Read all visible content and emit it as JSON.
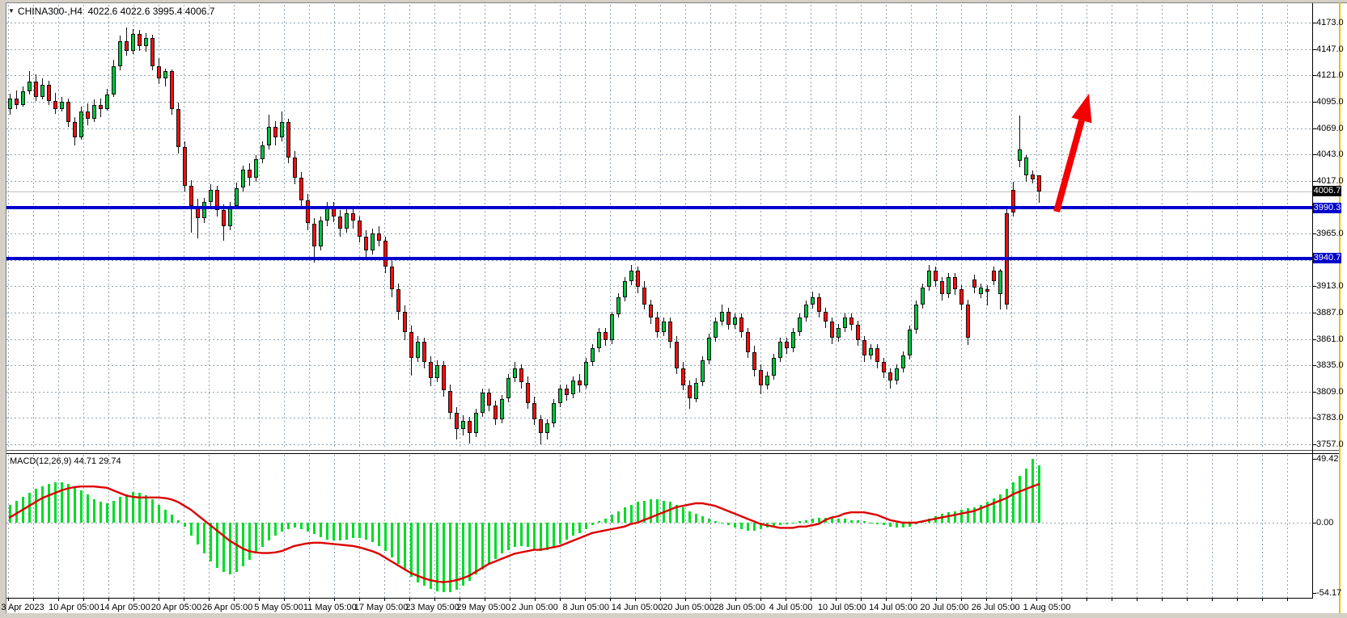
{
  "window": {
    "dropdown_icon": "▼",
    "symbol_timeframe": "CHINA300-,H4",
    "ohlc_text": "4022.6 4022.6 3995.4 4006.7"
  },
  "price_axis": {
    "labels": [
      {
        "value": 4173,
        "text": "4173.0"
      },
      {
        "value": 4147,
        "text": "4147.0"
      },
      {
        "value": 4121,
        "text": "4121.0"
      },
      {
        "value": 4095,
        "text": "4095.0"
      },
      {
        "value": 4069,
        "text": "4069.0"
      },
      {
        "value": 4043,
        "text": "4043.0"
      },
      {
        "value": 4017,
        "text": "4017.0"
      },
      {
        "value": 3965,
        "text": "3965.0"
      },
      {
        "value": 3913,
        "text": "3913.0"
      },
      {
        "value": 3887,
        "text": "3887.0"
      },
      {
        "value": 3861,
        "text": "3861.0"
      },
      {
        "value": 3835,
        "text": "3835.0"
      },
      {
        "value": 3809,
        "text": "3809.0"
      },
      {
        "value": 3783,
        "text": "3783.0"
      },
      {
        "value": 3757,
        "text": "3757.0"
      }
    ],
    "gridline_values": [
      4173,
      4147,
      4121,
      4095,
      4069,
      4043,
      4017,
      3991,
      3965,
      3939,
      3913,
      3887,
      3861,
      3835,
      3809,
      3783,
      3757
    ],
    "current_price_badge": {
      "value": 4006.7,
      "text": "4006.7",
      "bg": "#000000"
    },
    "line_badges": [
      {
        "value": 3990.3,
        "text": "3990.3",
        "bg": "#0000CD"
      },
      {
        "value": 3940.7,
        "text": "3940.7",
        "bg": "#0000CD"
      }
    ]
  },
  "time_axis": {
    "labels": [
      "3 Apr 2023",
      "10 Apr 05:00",
      "14 Apr 05:00",
      "20 Apr 05:00",
      "26 Apr 05:00",
      "5 May 05:00",
      "11 May 05:00",
      "17 May 05:00",
      "23 May 05:00",
      "29 May 05:00",
      "2 Jun 05:00",
      "8 Jun 05:00",
      "14 Jun 05:00",
      "20 Jun 05:00",
      "28 Jun 05:00",
      "4 Jul 05:00",
      "10 Jul 05:00",
      "14 Jul 05:00",
      "20 Jul 05:00",
      "26 Jul 05:00",
      "1 Aug 05:00"
    ]
  },
  "macd_panel": {
    "label": "MACD(12,26,9)",
    "macd_value": "44.71",
    "signal_value": "29.74",
    "axis_labels": [
      {
        "value": 49.42,
        "text": "49.42"
      },
      {
        "value": 0,
        "text": "0.00"
      },
      {
        "value": -54.17,
        "text": "-54.17"
      }
    ]
  },
  "colors": {
    "bull_candle": "#00C33C",
    "bear_candle": "#FF0C0C",
    "wick": "#111111",
    "grid": "#8FA3B2",
    "hline_blue": "#0000CD",
    "current_price_line": "#C0C0C0",
    "macd_histogram": "#00DC28",
    "macd_signal": "#DC0000",
    "arrow": "#F50000",
    "axis_edge_yellow": "#EFC100"
  },
  "chart_data": {
    "type": "candlestick",
    "symbol": "CHINA300",
    "timeframe": "H4",
    "title": "CHINA300-,H4 4022.6 4022.6 3995.4 4006.7",
    "ohlc_current": {
      "open": 4022.6,
      "high": 4022.6,
      "low": 3995.4,
      "close": 4006.7
    },
    "price_axis_range": [
      3757,
      4173
    ],
    "price_tick_step": 26,
    "x_labels": [
      "3 Apr 2023",
      "10 Apr 05:00",
      "14 Apr 05:00",
      "20 Apr 05:00",
      "26 Apr 05:00",
      "5 May 05:00",
      "11 May 05:00",
      "17 May 05:00",
      "23 May 05:00",
      "29 May 05:00",
      "2 Jun 05:00",
      "8 Jun 05:00",
      "14 Jun 05:00",
      "20 Jun 05:00",
      "28 Jun 05:00",
      "4 Jul 05:00",
      "10 Jul 05:00",
      "14 Jul 05:00",
      "20 Jul 05:00",
      "26 Jul 05:00",
      "1 Aug 05:00"
    ],
    "horizontal_lines": [
      {
        "value": 3990.3
      },
      {
        "value": 3940.7
      }
    ],
    "current_price": 4006.7,
    "annotations": [
      {
        "type": "up-arrow",
        "color": "#F50000",
        "meaning": "bullish breakout projection"
      }
    ],
    "candles": [
      [
        4088,
        4103,
        4082,
        4098
      ],
      [
        4098,
        4106,
        4088,
        4092
      ],
      [
        4092,
        4110,
        4090,
        4105
      ],
      [
        4105,
        4125,
        4102,
        4115
      ],
      [
        4115,
        4122,
        4096,
        4100
      ],
      [
        4100,
        4118,
        4097,
        4112
      ],
      [
        4112,
        4116,
        4092,
        4096
      ],
      [
        4096,
        4104,
        4083,
        4088
      ],
      [
        4088,
        4100,
        4085,
        4095
      ],
      [
        4095,
        4098,
        4070,
        4075
      ],
      [
        4075,
        4080,
        4052,
        4060
      ],
      [
        4060,
        4090,
        4057,
        4085
      ],
      [
        4085,
        4093,
        4072,
        4078
      ],
      [
        4078,
        4097,
        4075,
        4092
      ],
      [
        4092,
        4098,
        4080,
        4088
      ],
      [
        4088,
        4108,
        4086,
        4102
      ],
      [
        4102,
        4136,
        4100,
        4130
      ],
      [
        4130,
        4160,
        4126,
        4155
      ],
      [
        4155,
        4168,
        4140,
        4145
      ],
      [
        4145,
        4167,
        4142,
        4162
      ],
      [
        4162,
        4166,
        4145,
        4150
      ],
      [
        4150,
        4163,
        4144,
        4158
      ],
      [
        4158,
        4161,
        4126,
        4130
      ],
      [
        4130,
        4138,
        4112,
        4118
      ],
      [
        4118,
        4128,
        4110,
        4125
      ],
      [
        4125,
        4127,
        4082,
        4088
      ],
      [
        4088,
        4094,
        4044,
        4050
      ],
      [
        4050,
        4056,
        4006,
        4012
      ],
      [
        4012,
        4018,
        3966,
        3992
      ],
      [
        3992,
        3999,
        3960,
        3980
      ],
      [
        3980,
        4000,
        3975,
        3996
      ],
      [
        3996,
        4014,
        3990,
        4008
      ],
      [
        4008,
        4012,
        3982,
        3988
      ],
      [
        3988,
        3994,
        3958,
        3972
      ],
      [
        3972,
        3996,
        3968,
        3992
      ],
      [
        3992,
        4015,
        3989,
        4010
      ],
      [
        4010,
        4032,
        4006,
        4028
      ],
      [
        4028,
        4034,
        4012,
        4020
      ],
      [
        4020,
        4042,
        4016,
        4038
      ],
      [
        4038,
        4056,
        4034,
        4052
      ],
      [
        4052,
        4082,
        4048,
        4070
      ],
      [
        4070,
        4076,
        4052,
        4060
      ],
      [
        4060,
        4085,
        4056,
        4075
      ],
      [
        4075,
        4078,
        4034,
        4040
      ],
      [
        4040,
        4046,
        4014,
        4020
      ],
      [
        4020,
        4026,
        3992,
        3998
      ],
      [
        3998,
        4004,
        3968,
        3975
      ],
      [
        3975,
        3980,
        3936,
        3952
      ],
      [
        3952,
        3982,
        3948,
        3978
      ],
      [
        3978,
        3996,
        3972,
        3992
      ],
      [
        3992,
        3996,
        3976,
        3982
      ],
      [
        3982,
        3988,
        3962,
        3970
      ],
      [
        3970,
        3990,
        3966,
        3985
      ],
      [
        3985,
        3992,
        3970,
        3978
      ],
      [
        3978,
        3982,
        3956,
        3962
      ],
      [
        3962,
        3968,
        3940,
        3948
      ],
      [
        3948,
        3970,
        3944,
        3965
      ],
      [
        3965,
        3972,
        3952,
        3958
      ],
      [
        3958,
        3962,
        3926,
        3932
      ],
      [
        3932,
        3938,
        3902,
        3910
      ],
      [
        3910,
        3916,
        3880,
        3888
      ],
      [
        3888,
        3894,
        3860,
        3868
      ],
      [
        3868,
        3874,
        3825,
        3842
      ],
      [
        3842,
        3864,
        3838,
        3858
      ],
      [
        3858,
        3862,
        3832,
        3838
      ],
      [
        3838,
        3844,
        3814,
        3822
      ],
      [
        3822,
        3840,
        3818,
        3835
      ],
      [
        3835,
        3839,
        3804,
        3810
      ],
      [
        3810,
        3816,
        3782,
        3788
      ],
      [
        3788,
        3794,
        3762,
        3772
      ],
      [
        3772,
        3786,
        3766,
        3780
      ],
      [
        3780,
        3784,
        3758,
        3768
      ],
      [
        3768,
        3792,
        3764,
        3788
      ],
      [
        3788,
        3812,
        3784,
        3808
      ],
      [
        3808,
        3812,
        3790,
        3795
      ],
      [
        3795,
        3800,
        3776,
        3782
      ],
      [
        3782,
        3806,
        3778,
        3802
      ],
      [
        3802,
        3826,
        3798,
        3822
      ],
      [
        3822,
        3838,
        3818,
        3832
      ],
      [
        3832,
        3836,
        3812,
        3818
      ],
      [
        3818,
        3824,
        3792,
        3798
      ],
      [
        3798,
        3804,
        3776,
        3782
      ],
      [
        3782,
        3786,
        3757,
        3768
      ],
      [
        3768,
        3782,
        3762,
        3778
      ],
      [
        3778,
        3802,
        3774,
        3798
      ],
      [
        3798,
        3816,
        3794,
        3812
      ],
      [
        3812,
        3816,
        3800,
        3806
      ],
      [
        3806,
        3824,
        3802,
        3820
      ],
      [
        3820,
        3826,
        3808,
        3815
      ],
      [
        3815,
        3842,
        3812,
        3838
      ],
      [
        3838,
        3856,
        3834,
        3852
      ],
      [
        3852,
        3872,
        3848,
        3868
      ],
      [
        3868,
        3872,
        3854,
        3860
      ],
      [
        3860,
        3888,
        3856,
        3885
      ],
      [
        3885,
        3906,
        3882,
        3902
      ],
      [
        3902,
        3922,
        3898,
        3918
      ],
      [
        3918,
        3934,
        3914,
        3928
      ],
      [
        3928,
        3932,
        3906,
        3912
      ],
      [
        3912,
        3918,
        3890,
        3895
      ],
      [
        3895,
        3900,
        3876,
        3882
      ],
      [
        3882,
        3888,
        3862,
        3868
      ],
      [
        3868,
        3882,
        3864,
        3878
      ],
      [
        3878,
        3882,
        3852,
        3858
      ],
      [
        3858,
        3864,
        3826,
        3832
      ],
      [
        3832,
        3838,
        3810,
        3815
      ],
      [
        3815,
        3820,
        3792,
        3802
      ],
      [
        3802,
        3822,
        3798,
        3818
      ],
      [
        3818,
        3844,
        3814,
        3840
      ],
      [
        3840,
        3866,
        3836,
        3862
      ],
      [
        3862,
        3882,
        3858,
        3878
      ],
      [
        3878,
        3895,
        3874,
        3888
      ],
      [
        3888,
        3892,
        3870,
        3875
      ],
      [
        3875,
        3886,
        3871,
        3882
      ],
      [
        3882,
        3886,
        3862,
        3868
      ],
      [
        3868,
        3872,
        3842,
        3848
      ],
      [
        3848,
        3854,
        3824,
        3830
      ],
      [
        3830,
        3836,
        3806,
        3815
      ],
      [
        3815,
        3829,
        3811,
        3825
      ],
      [
        3825,
        3846,
        3821,
        3842
      ],
      [
        3842,
        3862,
        3838,
        3858
      ],
      [
        3858,
        3862,
        3846,
        3852
      ],
      [
        3852,
        3872,
        3848,
        3868
      ],
      [
        3868,
        3886,
        3864,
        3882
      ],
      [
        3882,
        3899,
        3878,
        3895
      ],
      [
        3895,
        3908,
        3891,
        3902
      ],
      [
        3902,
        3906,
        3882,
        3888
      ],
      [
        3888,
        3892,
        3872,
        3878
      ],
      [
        3878,
        3882,
        3856,
        3862
      ],
      [
        3862,
        3876,
        3858,
        3872
      ],
      [
        3872,
        3886,
        3868,
        3882
      ],
      [
        3882,
        3886,
        3869,
        3875
      ],
      [
        3875,
        3879,
        3854,
        3860
      ],
      [
        3860,
        3864,
        3838,
        3845
      ],
      [
        3845,
        3856,
        3841,
        3852
      ],
      [
        3852,
        3856,
        3832,
        3838
      ],
      [
        3838,
        3842,
        3822,
        3828
      ],
      [
        3828,
        3832,
        3812,
        3820
      ],
      [
        3820,
        3836,
        3816,
        3832
      ],
      [
        3832,
        3849,
        3828,
        3845
      ],
      [
        3845,
        3874,
        3841,
        3870
      ],
      [
        3870,
        3899,
        3866,
        3895
      ],
      [
        3895,
        3916,
        3891,
        3912
      ],
      [
        3912,
        3934,
        3908,
        3928
      ],
      [
        3928,
        3932,
        3912,
        3918
      ],
      [
        3918,
        3922,
        3899,
        3905
      ],
      [
        3905,
        3926,
        3901,
        3922
      ],
      [
        3922,
        3926,
        3904,
        3910
      ],
      [
        3910,
        3914,
        3889,
        3895
      ],
      [
        3895,
        3900,
        3855,
        3862
      ],
      [
        3920,
        3924,
        3906,
        3912
      ],
      [
        3905,
        3916,
        3901,
        3912
      ],
      [
        3910,
        3914,
        3894,
        3908
      ],
      [
        3928,
        3932,
        3914,
        3918
      ],
      [
        3905,
        3930,
        3890,
        3928
      ],
      [
        3985,
        3990,
        3890,
        3895
      ],
      [
        4008,
        4016,
        3982,
        3986
      ],
      [
        4037,
        4081,
        4030,
        4048
      ],
      [
        4022,
        4042,
        4016,
        4040
      ],
      [
        4023,
        4027,
        4014,
        4018
      ],
      [
        4022.6,
        4022.6,
        3995.4,
        4006.7
      ]
    ],
    "indicator": {
      "type": "MACD",
      "params": "12,26,9",
      "current_macd": 44.71,
      "current_signal": 29.74,
      "axis_max": 49.42,
      "axis_min": -54.17,
      "histogram": [
        14,
        17,
        20,
        23,
        26,
        28,
        30,
        31,
        31,
        30,
        28,
        25,
        22,
        18,
        16,
        15,
        17,
        20,
        22,
        24,
        23,
        21,
        18,
        14,
        10,
        6,
        2,
        -3,
        -10,
        -17,
        -24,
        -30,
        -35,
        -38,
        -40,
        -38,
        -34,
        -29,
        -24,
        -19,
        -14,
        -10,
        -7,
        -5,
        -4,
        -5,
        -7,
        -9,
        -11,
        -13,
        -14,
        -14,
        -13,
        -12,
        -12,
        -13,
        -15,
        -18,
        -22,
        -27,
        -32,
        -37,
        -42,
        -46,
        -49,
        -51.5,
        -53,
        -54,
        -53.5,
        -52,
        -49,
        -45,
        -40,
        -36,
        -32,
        -28,
        -24,
        -21,
        -19,
        -18,
        -19,
        -21,
        -22,
        -21,
        -19,
        -16,
        -13,
        -10,
        -8,
        -5,
        -2,
        1,
        3,
        6,
        9,
        12,
        14,
        16,
        17,
        18,
        18,
        17,
        16,
        14,
        12,
        9,
        7,
        5,
        3,
        1,
        0,
        -2,
        -4,
        -5,
        -6,
        -6,
        -5,
        -4,
        -3,
        -2,
        -1,
        0,
        1,
        2,
        3,
        4,
        4,
        4,
        3,
        3,
        2,
        2,
        1,
        0,
        -1,
        -2,
        -3,
        -4,
        -4,
        -3,
        -1,
        1,
        3,
        5,
        7,
        8,
        9,
        10,
        11,
        12,
        14,
        16,
        19,
        22,
        26,
        31,
        36,
        42,
        49.42,
        44.71
      ],
      "signal": [
        4,
        7,
        10,
        13,
        16,
        19,
        21,
        23,
        25,
        26.5,
        27.5,
        28,
        28,
        28,
        27.5,
        27,
        25,
        23,
        21,
        20,
        19.5,
        19.5,
        19.5,
        19.5,
        19,
        18,
        16,
        13,
        10,
        6,
        2,
        -2,
        -6,
        -10,
        -14,
        -17,
        -20,
        -22,
        -23,
        -23.5,
        -23.5,
        -23,
        -22,
        -20,
        -18,
        -17,
        -16,
        -15.5,
        -15.5,
        -16,
        -16.5,
        -17,
        -17.5,
        -18,
        -19,
        -20.5,
        -22,
        -24,
        -27,
        -30,
        -33,
        -36,
        -39,
        -41,
        -43,
        -44.5,
        -45.5,
        -46,
        -45.5,
        -44.5,
        -43,
        -41,
        -38,
        -35,
        -32,
        -30,
        -28,
        -26,
        -24,
        -23,
        -22,
        -21,
        -21,
        -20,
        -19,
        -18,
        -16,
        -14,
        -12,
        -10,
        -8,
        -7,
        -6,
        -5,
        -4,
        -3,
        -1,
        0,
        2,
        4,
        6,
        8,
        10,
        12,
        13,
        14,
        15,
        15,
        14,
        13,
        11,
        9,
        7,
        5,
        3,
        1,
        -1,
        -2,
        -3,
        -4,
        -4,
        -4,
        -3,
        -3,
        -2,
        -1,
        2,
        4,
        5,
        7,
        8,
        8,
        8,
        7,
        6,
        4,
        2,
        1,
        0,
        0,
        0,
        1,
        2,
        3,
        4,
        5,
        6,
        7,
        8,
        9,
        11,
        13,
        15,
        17,
        19,
        22,
        24,
        26,
        28,
        29.74
      ]
    }
  }
}
